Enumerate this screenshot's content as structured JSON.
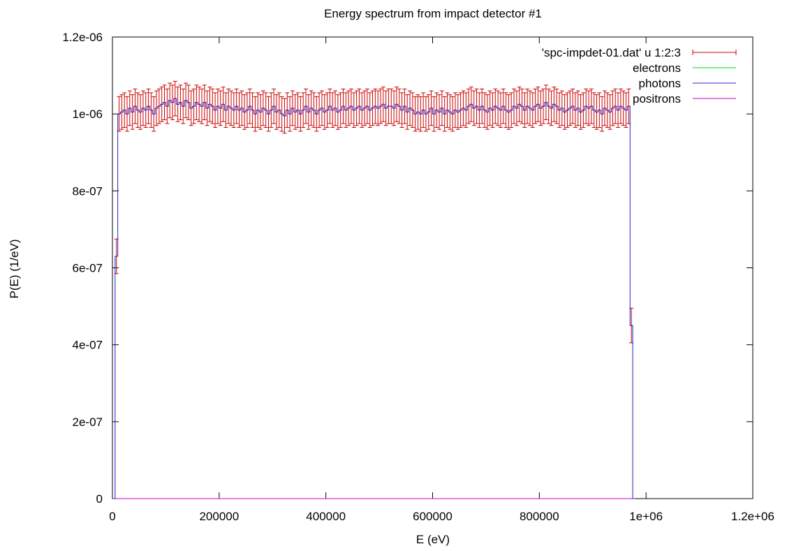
{
  "chart_data": {
    "type": "line",
    "title": "Energy spectrum from impact detector #1",
    "xlabel": "E (eV)",
    "ylabel": "P(E) (1/eV)",
    "xlim": [
      0,
      1200000
    ],
    "ylim": [
      0,
      1.2e-06
    ],
    "xticks": [
      0,
      200000,
      400000,
      600000,
      800000,
      1000000,
      1200000
    ],
    "xtick_labels": [
      "0",
      "200000",
      "400000",
      "600000",
      "800000",
      "1e+06",
      "1.2e+06"
    ],
    "yticks": [
      0,
      2e-07,
      4e-07,
      6e-07,
      8e-07,
      1e-06,
      1.2e-06
    ],
    "ytick_labels": [
      "0",
      "2e-07",
      "4e-07",
      "6e-07",
      "8e-07",
      "1e-06",
      "1.2e-06"
    ],
    "grid": false,
    "legend_position": "top-right",
    "bin_width": 5000,
    "series": [
      {
        "name": "'spc-impdet-01.dat' u 1:2:3",
        "style": "errorbars",
        "color": "#cc0000",
        "error": 4.5e-08,
        "x_start": 0,
        "x_step": 5000,
        "values": [
          0,
          6.3e-07,
          1e-06,
          1.005e-06,
          1.01e-06,
          1e-06,
          1.015e-06,
          1.005e-06,
          1.02e-06,
          1.01e-06,
          1.005e-06,
          1.015e-06,
          1.01e-06,
          1.02e-06,
          1.01e-06,
          1e-06,
          1.015e-06,
          1.02e-06,
          1.025e-06,
          1.03e-06,
          1.02e-06,
          1.035e-06,
          1.03e-06,
          1.04e-06,
          1.025e-06,
          1.03e-06,
          1.02e-06,
          1.035e-06,
          1.03e-06,
          1.015e-06,
          1.02e-06,
          1.03e-06,
          1.025e-06,
          1.02e-06,
          1.03e-06,
          1.015e-06,
          1.025e-06,
          1.02e-06,
          1.01e-06,
          1.02e-06,
          1.015e-06,
          1.025e-06,
          1.01e-06,
          1.02e-06,
          1.015e-06,
          1.01e-06,
          1.02e-06,
          1.01e-06,
          1.015e-06,
          1.005e-06,
          1.01e-06,
          1.02e-06,
          1.01e-06,
          1e-06,
          1.01e-06,
          1.005e-06,
          1.015e-06,
          1.01e-06,
          1e-06,
          1.01e-06,
          1.02e-06,
          1.005e-06,
          1.01e-06,
          1e-06,
          9.95e-07,
          1.01e-06,
          1e-06,
          1.015e-06,
          1.005e-06,
          1.01e-06,
          1e-06,
          1.01e-06,
          1.02e-06,
          1.005e-06,
          1.015e-06,
          1.01e-06,
          1e-06,
          1.01e-06,
          1.015e-06,
          1.005e-06,
          1.01e-06,
          1.02e-06,
          1.01e-06,
          1.015e-06,
          1.005e-06,
          1.01e-06,
          1.02e-06,
          1.01e-06,
          1.015e-06,
          1.02e-06,
          1.01e-06,
          1.015e-06,
          1.02e-06,
          1.01e-06,
          1.015e-06,
          1.02e-06,
          1.01e-06,
          1.015e-06,
          1.02e-06,
          1.015e-06,
          1.02e-06,
          1.025e-06,
          1.015e-06,
          1.02e-06,
          1.02e-06,
          1.015e-06,
          1.025e-06,
          1.02e-06,
          1.01e-06,
          1.02e-06,
          1.005e-06,
          1.015e-06,
          1.01e-06,
          1e-06,
          1.005e-06,
          1e-06,
          1.01e-06,
          1e-06,
          1.005e-06,
          1.015e-06,
          1e-06,
          1.01e-06,
          1.005e-06,
          1.015e-06,
          1e-06,
          1.01e-06,
          1.005e-06,
          1e-06,
          1.01e-06,
          1.005e-06,
          1.01e-06,
          1.015e-06,
          1.01e-06,
          1.02e-06,
          1.025e-06,
          1.015e-06,
          1.02e-06,
          1.01e-06,
          1.02e-06,
          1.01e-06,
          1.005e-06,
          1.015e-06,
          1.01e-06,
          1.02e-06,
          1.015e-06,
          1.01e-06,
          1.02e-06,
          1.01e-06,
          1.005e-06,
          1.01e-06,
          1.02e-06,
          1.015e-06,
          1.025e-06,
          1.02e-06,
          1.01e-06,
          1.02e-06,
          1.015e-06,
          1.01e-06,
          1.02e-06,
          1.025e-06,
          1.015e-06,
          1.02e-06,
          1.03e-06,
          1.02e-06,
          1.015e-06,
          1.025e-06,
          1.02e-06,
          1.01e-06,
          1.015e-06,
          1.005e-06,
          1.01e-06,
          1.015e-06,
          1.02e-06,
          1.01e-06,
          1.015e-06,
          1.005e-06,
          1.01e-06,
          1.02e-06,
          1.015e-06,
          1.02e-06,
          1.01e-06,
          1.005e-06,
          1.01e-06,
          1e-06,
          1.015e-06,
          1.01e-06,
          1.005e-06,
          1.015e-06,
          1.02e-06,
          1.01e-06,
          1.02e-06,
          1.015e-06,
          1.01e-06,
          1.02e-06,
          4.5e-07,
          0
        ]
      },
      {
        "name": "electrons",
        "style": "steps",
        "color": "#00dd00",
        "values_ref": "zero"
      },
      {
        "name": "photons",
        "style": "steps",
        "color": "#2222cc",
        "values_ref": "same_as_series_0"
      },
      {
        "name": "positrons",
        "style": "steps",
        "color": "#cc00cc",
        "values_ref": "zero"
      }
    ]
  }
}
